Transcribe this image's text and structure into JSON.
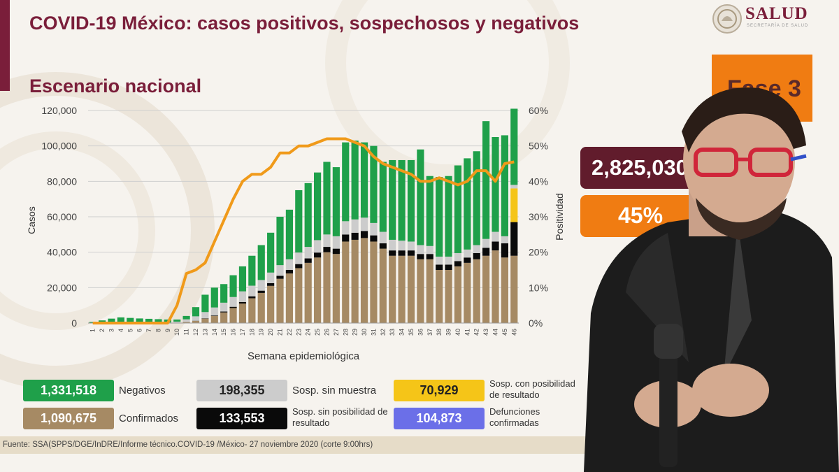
{
  "header": {
    "title": "COVID-19 México: casos positivos, sospechosos y negativos",
    "subtitle": "Escenario nacional",
    "logo_text": "SALUD",
    "logo_subtext": "SECRETARÍA DE SALUD"
  },
  "side_panel": {
    "phase_label": "Fase 3",
    "total_label": "2,825,030",
    "positivity_label": "45%"
  },
  "legend": [
    {
      "value": "1,331,518",
      "label": "Negativos",
      "color": "#1fa04a"
    },
    {
      "value": "198,355",
      "label": "Sosp. sin muestra",
      "color": "#cccccc"
    },
    {
      "value": "70,929",
      "label": "Sosp. con posibilidad de resultado",
      "color": "#f5c518"
    },
    {
      "value": "1,090,675",
      "label": "Confirmados",
      "color": "#a68a64"
    },
    {
      "value": "133,553",
      "label": "Sosp. sin posibilidad de resultado",
      "color": "#0a0a0a"
    },
    {
      "value": "104,873",
      "label": "Defunciones confirmadas",
      "color": "#6b6fe8"
    }
  ],
  "footer": {
    "source": "Fuente: SSA(SPPS/DGE/InDRE/Informe técnico.COVID-19 /México- 27 noviembre 2020 (corte 9:00hrs)"
  },
  "chart_data": {
    "type": "bar",
    "stacked": true,
    "xlabel": "Semana epidemiológica",
    "ylabel": "Casos",
    "y2label": "Positividad",
    "ylim": [
      0,
      120000
    ],
    "y2lim": [
      0,
      60
    ],
    "yticks": [
      "0",
      "20,000",
      "40,000",
      "60,000",
      "80,000",
      "100,000",
      "120,000"
    ],
    "y2ticks": [
      "0%",
      "10%",
      "20%",
      "30%",
      "40%",
      "50%",
      "60%"
    ],
    "grid": true,
    "categories": [
      "1",
      "2",
      "3",
      "4",
      "5",
      "6",
      "7",
      "8",
      "9",
      "10",
      "11",
      "12",
      "13",
      "14",
      "15",
      "16",
      "17",
      "18",
      "19",
      "20",
      "21",
      "22",
      "23",
      "24",
      "25",
      "26",
      "27",
      "28",
      "29",
      "30",
      "31",
      "32",
      "33",
      "34",
      "35",
      "36",
      "37",
      "38",
      "39",
      "40",
      "41",
      "42",
      "43",
      "44",
      "45",
      "46"
    ],
    "series": [
      {
        "name": "Confirmados",
        "color": "#a68a64",
        "values": [
          0,
          0,
          0,
          0,
          0,
          0,
          0,
          0,
          0,
          200,
          600,
          1200,
          2500,
          4000,
          6000,
          8500,
          11000,
          14000,
          17000,
          21000,
          25000,
          28000,
          31000,
          34000,
          37000,
          40000,
          39000,
          46000,
          47000,
          48000,
          46000,
          42000,
          38000,
          38000,
          38000,
          36000,
          36000,
          30000,
          30000,
          32000,
          34000,
          36000,
          38000,
          41000,
          37000,
          38000
        ]
      },
      {
        "name": "Sosp. sin posibilidad de resultado",
        "color": "#0a0a0a",
        "values": [
          0,
          0,
          0,
          0,
          0,
          0,
          0,
          0,
          0,
          0,
          0,
          100,
          200,
          300,
          500,
          700,
          900,
          1100,
          1300,
          1500,
          1700,
          2000,
          2300,
          2500,
          2800,
          3000,
          3000,
          4000,
          4000,
          4000,
          3500,
          3000,
          3000,
          3000,
          3000,
          3000,
          3000,
          3000,
          3000,
          3000,
          3000,
          3500,
          4500,
          5000,
          8000,
          19000
        ]
      },
      {
        "name": "Sosp. con posibilidad de resultado",
        "color": "#f5c518",
        "values": [
          0,
          0,
          0,
          0,
          0,
          0,
          0,
          0,
          0,
          0,
          0,
          0,
          0,
          0,
          0,
          0,
          0,
          0,
          0,
          0,
          0,
          0,
          0,
          0,
          0,
          0,
          0,
          0,
          0,
          0,
          0,
          0,
          0,
          0,
          0,
          0,
          0,
          0,
          0,
          0,
          0,
          0,
          0,
          0,
          0,
          19000
        ]
      },
      {
        "name": "Sosp. sin muestra",
        "color": "#cccccc",
        "values": [
          200,
          300,
          400,
          400,
          300,
          300,
          300,
          300,
          300,
          600,
          1500,
          2500,
          3500,
          4500,
          5000,
          5500,
          6000,
          6000,
          6000,
          6000,
          6000,
          6000,
          6500,
          6500,
          7000,
          7000,
          7000,
          7500,
          7500,
          7500,
          7000,
          6500,
          6000,
          5500,
          5000,
          5000,
          4500,
          4500,
          4500,
          4500,
          4500,
          4500,
          5000,
          5500,
          4000,
          2000
        ]
      },
      {
        "name": "Negativos",
        "color": "#1fa04a",
        "values": [
          400,
          1200,
          2100,
          2800,
          2600,
          2300,
          2100,
          1900,
          1700,
          1200,
          1900,
          5200,
          9800,
          11200,
          10500,
          12300,
          14100,
          16900,
          19700,
          22500,
          27300,
          28000,
          35200,
          36000,
          38200,
          41000,
          39000,
          44500,
          44500,
          42500,
          43500,
          39500,
          45000,
          45500,
          46000,
          54000,
          39500,
          45000,
          45500,
          49500,
          51500,
          53000,
          66500,
          53500,
          57000,
          43000
        ]
      }
    ],
    "line": {
      "name": "Positividad",
      "color": "#f09a1a",
      "values": [
        0,
        0,
        0,
        0,
        0,
        0,
        0,
        0,
        0,
        5,
        14,
        15,
        17,
        23,
        29,
        35,
        40,
        42,
        42,
        44,
        48,
        48,
        50,
        50,
        51,
        52,
        52,
        52,
        51,
        50,
        47,
        45,
        44,
        43,
        42,
        40,
        40,
        41,
        40,
        39,
        40,
        43,
        43,
        40,
        45,
        45.5
      ]
    }
  }
}
